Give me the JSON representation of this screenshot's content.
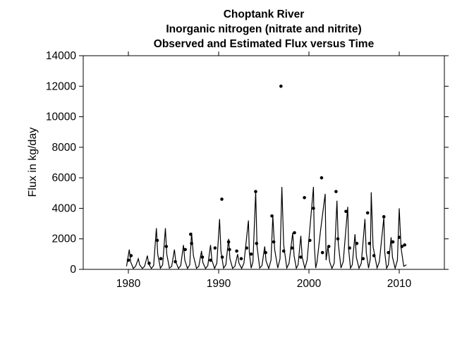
{
  "chart_data": {
    "type": "line",
    "title_lines": [
      "Choptank River",
      "Inorganic nitrogen (nitrate and nitrite)",
      "Observed and Estimated Flux versus Time"
    ],
    "xlabel": "",
    "ylabel": "Flux in kg/day",
    "xlim": [
      1975,
      2015
    ],
    "ylim": [
      0,
      14000
    ],
    "xticks": [
      1980,
      1990,
      2000,
      2010
    ],
    "yticks": [
      0,
      2000,
      4000,
      6000,
      8000,
      10000,
      12000,
      14000
    ],
    "grid": false,
    "legend": "none",
    "colors": {
      "line": "#000000",
      "points": "#000000"
    },
    "series": [
      {
        "kind": "line",
        "values": [
          [
            1979.8,
            200
          ],
          [
            1980.1,
            1300
          ],
          [
            1980.25,
            500
          ],
          [
            1980.55,
            60
          ],
          [
            1980.8,
            200
          ],
          [
            1981.1,
            700
          ],
          [
            1981.25,
            300
          ],
          [
            1981.55,
            60
          ],
          [
            1981.8,
            200
          ],
          [
            1982.1,
            900
          ],
          [
            1982.25,
            350
          ],
          [
            1982.55,
            60
          ],
          [
            1982.8,
            250
          ],
          [
            1983.1,
            2700
          ],
          [
            1983.25,
            1000
          ],
          [
            1983.55,
            80
          ],
          [
            1983.8,
            300
          ],
          [
            1984.1,
            2700
          ],
          [
            1984.25,
            1000
          ],
          [
            1984.55,
            80
          ],
          [
            1984.8,
            200
          ],
          [
            1985.1,
            1300
          ],
          [
            1985.25,
            500
          ],
          [
            1985.55,
            60
          ],
          [
            1985.8,
            250
          ],
          [
            1986.1,
            1600
          ],
          [
            1986.25,
            600
          ],
          [
            1986.55,
            60
          ],
          [
            1986.8,
            300
          ],
          [
            1987.0,
            2400
          ],
          [
            1987.2,
            900
          ],
          [
            1987.55,
            70
          ],
          [
            1987.8,
            200
          ],
          [
            1988.1,
            1200
          ],
          [
            1988.25,
            450
          ],
          [
            1988.55,
            60
          ],
          [
            1988.8,
            250
          ],
          [
            1989.1,
            1600
          ],
          [
            1989.25,
            600
          ],
          [
            1989.55,
            60
          ],
          [
            1989.8,
            400
          ],
          [
            1990.1,
            3300
          ],
          [
            1990.25,
            1200
          ],
          [
            1990.55,
            80
          ],
          [
            1990.8,
            300
          ],
          [
            1991.1,
            2000
          ],
          [
            1991.25,
            700
          ],
          [
            1991.55,
            70
          ],
          [
            1991.8,
            200
          ],
          [
            1992.1,
            1000
          ],
          [
            1992.25,
            400
          ],
          [
            1992.55,
            60
          ],
          [
            1992.8,
            400
          ],
          [
            1993.3,
            3200
          ],
          [
            1993.4,
            1100
          ],
          [
            1993.6,
            80
          ],
          [
            1993.8,
            500
          ],
          [
            1994.1,
            5100
          ],
          [
            1994.25,
            1500
          ],
          [
            1994.55,
            90
          ],
          [
            1994.8,
            250
          ],
          [
            1995.1,
            1500
          ],
          [
            1995.25,
            550
          ],
          [
            1995.55,
            60
          ],
          [
            1995.8,
            600
          ],
          [
            1996.0,
            3500
          ],
          [
            1996.2,
            1300
          ],
          [
            1996.55,
            90
          ],
          [
            1996.8,
            700
          ],
          [
            1997.0,
            5400
          ],
          [
            1997.2,
            1600
          ],
          [
            1997.55,
            90
          ],
          [
            1997.8,
            400
          ],
          [
            1998.2,
            2400
          ],
          [
            1998.35,
            900
          ],
          [
            1998.6,
            70
          ],
          [
            1998.8,
            300
          ],
          [
            1999.1,
            2200
          ],
          [
            1999.25,
            800
          ],
          [
            1999.55,
            70
          ],
          [
            1999.8,
            600
          ],
          [
            2000.5,
            5400
          ],
          [
            2000.6,
            1500
          ],
          [
            2000.75,
            90
          ],
          [
            2000.9,
            500
          ],
          [
            2001.3,
            2600
          ],
          [
            2001.8,
            4950
          ],
          [
            2001.9,
            600
          ],
          [
            2002.1,
            1500
          ],
          [
            2002.3,
            500
          ],
          [
            2002.55,
            60
          ],
          [
            2002.8,
            400
          ],
          [
            2003.1,
            4500
          ],
          [
            2003.25,
            1700
          ],
          [
            2003.55,
            90
          ],
          [
            2003.8,
            500
          ],
          [
            2004.3,
            4100
          ],
          [
            2004.4,
            1300
          ],
          [
            2004.6,
            80
          ],
          [
            2004.8,
            300
          ],
          [
            2005.1,
            2300
          ],
          [
            2005.25,
            800
          ],
          [
            2005.55,
            70
          ],
          [
            2005.8,
            400
          ],
          [
            2006.2,
            3300
          ],
          [
            2006.35,
            1100
          ],
          [
            2006.6,
            80
          ],
          [
            2006.8,
            700
          ],
          [
            2006.9,
            5050
          ],
          [
            2007.1,
            1500
          ],
          [
            2007.55,
            90
          ],
          [
            2007.8,
            500
          ],
          [
            2008.3,
            3400
          ],
          [
            2008.4,
            1100
          ],
          [
            2008.6,
            70
          ],
          [
            2008.8,
            300
          ],
          [
            2009.1,
            2100
          ],
          [
            2009.25,
            800
          ],
          [
            2009.55,
            70
          ],
          [
            2009.8,
            600
          ],
          [
            2010.0,
            4000
          ],
          [
            2010.2,
            1400
          ],
          [
            2010.5,
            200
          ],
          [
            2010.8,
            300
          ]
        ]
      },
      {
        "kind": "points",
        "values": [
          [
            1980.0,
            600
          ],
          [
            1980.3,
            900
          ],
          [
            1982.3,
            400
          ],
          [
            1983.2,
            1900
          ],
          [
            1983.6,
            700
          ],
          [
            1984.2,
            1500
          ],
          [
            1985.2,
            500
          ],
          [
            1986.3,
            1300
          ],
          [
            1986.9,
            2300
          ],
          [
            1987.0,
            1700
          ],
          [
            1988.2,
            800
          ],
          [
            1989.1,
            600
          ],
          [
            1989.6,
            1400
          ],
          [
            1990.35,
            4600
          ],
          [
            1990.4,
            800
          ],
          [
            1991.1,
            1800
          ],
          [
            1991.2,
            1300
          ],
          [
            1992.0,
            1200
          ],
          [
            1992.5,
            700
          ],
          [
            1993.1,
            1400
          ],
          [
            1993.6,
            1000
          ],
          [
            1994.1,
            5100
          ],
          [
            1994.2,
            1700
          ],
          [
            1995.2,
            1100
          ],
          [
            1995.9,
            3500
          ],
          [
            1996.1,
            1800
          ],
          [
            1996.9,
            12000
          ],
          [
            1997.2,
            1200
          ],
          [
            1998.1,
            1400
          ],
          [
            1998.4,
            2400
          ],
          [
            1999.1,
            800
          ],
          [
            1999.5,
            4700
          ],
          [
            2000.1,
            1900
          ],
          [
            2000.5,
            4000
          ],
          [
            2001.4,
            6000
          ],
          [
            2001.5,
            1100
          ],
          [
            2002.2,
            1500
          ],
          [
            2003.0,
            5100
          ],
          [
            2003.2,
            2000
          ],
          [
            2004.1,
            3800
          ],
          [
            2004.5,
            1400
          ],
          [
            2005.3,
            1700
          ],
          [
            2006.0,
            700
          ],
          [
            2006.5,
            3700
          ],
          [
            2006.7,
            1700
          ],
          [
            2007.2,
            900
          ],
          [
            2008.3,
            3450
          ],
          [
            2008.8,
            1100
          ],
          [
            2009.3,
            1800
          ],
          [
            2010.0,
            2100
          ],
          [
            2010.3,
            1500
          ],
          [
            2010.6,
            1600
          ]
        ]
      }
    ]
  }
}
